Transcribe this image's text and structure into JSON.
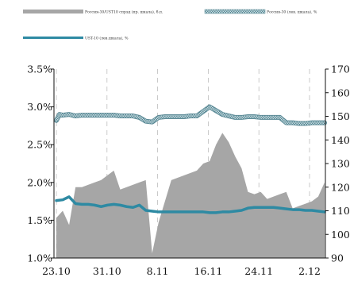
{
  "chart_data": {
    "type": "line",
    "title": "",
    "xlabel": "",
    "legend": {
      "position": "top",
      "entries": [
        {
          "series": "spread",
          "label": "Россия-30/UST10 спрэд (пр. шкала), б.п.",
          "style": "area",
          "color": "#a6a6a6"
        },
        {
          "series": "russia30",
          "label": "Россия-30 (лев. шкала), %",
          "style": "hatched-line",
          "color": "#5b8a96"
        },
        {
          "series": "ust10",
          "label": "UST-10 (лев.шкала), %",
          "style": "line",
          "color": "#2e8aa3"
        }
      ]
    },
    "x_ticks": [
      "23.10",
      "31.10",
      "8.11",
      "16.11",
      "24.11",
      "2.12"
    ],
    "y_left": {
      "min": 1.0,
      "max": 3.5,
      "ticks": [
        "1.0%",
        "1.5%",
        "2.0%",
        "2.5%",
        "3.0%",
        "3.5%"
      ]
    },
    "y_right": {
      "min": 90,
      "max": 170,
      "ticks": [
        "90",
        "100",
        "110",
        "120",
        "130",
        "140",
        "150",
        "160",
        "170"
      ]
    },
    "grid": {
      "vertical": true,
      "horizontal": false,
      "style": "dashed"
    },
    "series": [
      {
        "key": "spread",
        "axis": "right",
        "x": [
          0,
          1,
          2,
          3,
          4,
          5,
          6,
          7,
          8,
          9,
          10,
          11,
          12,
          13,
          14,
          15,
          16,
          17,
          18,
          19,
          20,
          21,
          22,
          23,
          24,
          25,
          26,
          27,
          28,
          29,
          30,
          31,
          32,
          33,
          34,
          35,
          36,
          37,
          38,
          39,
          40,
          41,
          42
        ],
        "values": [
          107,
          110,
          104,
          120,
          120,
          121,
          122,
          123,
          125,
          127,
          119,
          120,
          121,
          122,
          123,
          92,
          105,
          114,
          123,
          124,
          125,
          126,
          127,
          130,
          131,
          138,
          143,
          139,
          133,
          128,
          118,
          117,
          118,
          115,
          116,
          117,
          118,
          111,
          112,
          113,
          114,
          116,
          122
        ]
      },
      {
        "key": "russia30",
        "axis": "left",
        "x": [
          0,
          0.5,
          1,
          2,
          3,
          4,
          5,
          6,
          7,
          8,
          9,
          10,
          11,
          12,
          13,
          14,
          15,
          16,
          17,
          18,
          19,
          20,
          21,
          22,
          23,
          24,
          25,
          26,
          27,
          28,
          29,
          30,
          31,
          32,
          33,
          34,
          35,
          36,
          37,
          38,
          39,
          40,
          41,
          42
        ],
        "values": [
          2.82,
          2.9,
          2.89,
          2.9,
          2.88,
          2.89,
          2.89,
          2.89,
          2.89,
          2.89,
          2.89,
          2.88,
          2.88,
          2.88,
          2.86,
          2.81,
          2.8,
          2.86,
          2.87,
          2.87,
          2.87,
          2.87,
          2.88,
          2.88,
          2.94,
          3.0,
          2.95,
          2.9,
          2.88,
          2.86,
          2.86,
          2.87,
          2.87,
          2.86,
          2.86,
          2.86,
          2.86,
          2.79,
          2.79,
          2.78,
          2.78,
          2.79,
          2.79,
          2.79
        ]
      },
      {
        "key": "ust10",
        "axis": "left",
        "x": [
          0,
          1,
          2,
          3,
          4,
          5,
          6,
          7,
          8,
          9,
          10,
          11,
          12,
          13,
          14,
          15,
          16,
          17,
          18,
          19,
          20,
          21,
          22,
          23,
          24,
          25,
          26,
          27,
          28,
          29,
          30,
          31,
          32,
          33,
          34,
          35,
          36,
          37,
          38,
          39,
          40,
          41,
          42
        ],
        "values": [
          1.76,
          1.77,
          1.81,
          1.72,
          1.71,
          1.71,
          1.7,
          1.68,
          1.7,
          1.71,
          1.7,
          1.68,
          1.67,
          1.7,
          1.63,
          1.62,
          1.61,
          1.61,
          1.61,
          1.61,
          1.61,
          1.61,
          1.61,
          1.61,
          1.6,
          1.6,
          1.61,
          1.61,
          1.62,
          1.63,
          1.66,
          1.67,
          1.67,
          1.67,
          1.67,
          1.66,
          1.65,
          1.64,
          1.64,
          1.63,
          1.63,
          1.62,
          1.61
        ]
      }
    ]
  }
}
